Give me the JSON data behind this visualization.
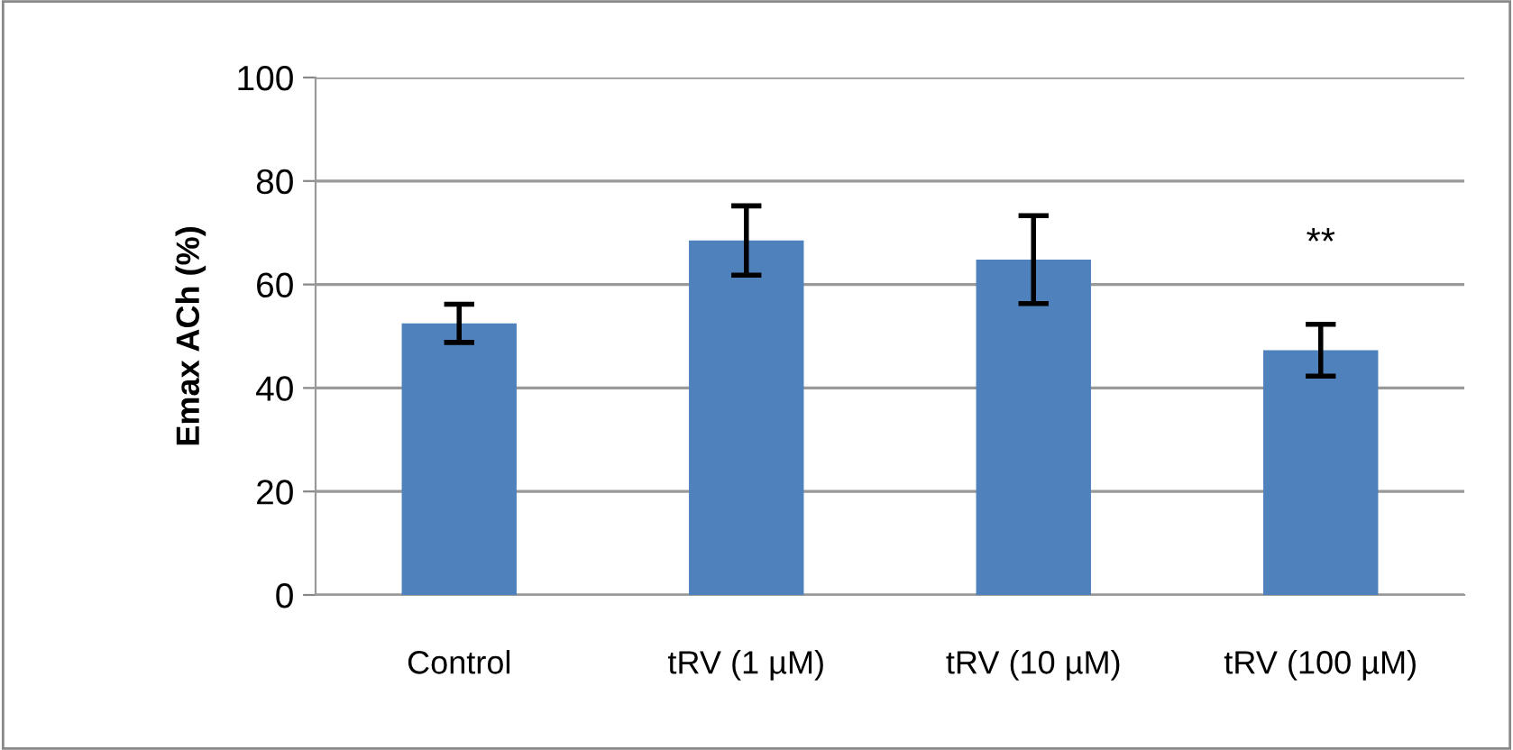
{
  "chart_data": {
    "type": "bar",
    "ylabel": "Emax ACh (%)",
    "categories": [
      "Control",
      "tRV (1 µM)",
      "tRV (10 µM)",
      "tRV (100 µM)"
    ],
    "values": [
      52.5,
      68.5,
      64.8,
      47.3
    ],
    "errors": [
      3.7,
      6.7,
      8.5,
      5
    ],
    "color": "#4f81bd",
    "ylim": [
      0,
      100
    ],
    "yticks": [
      0,
      20,
      40,
      60,
      80,
      100
    ],
    "grid": "y",
    "annotations": [
      "**"
    ]
  }
}
